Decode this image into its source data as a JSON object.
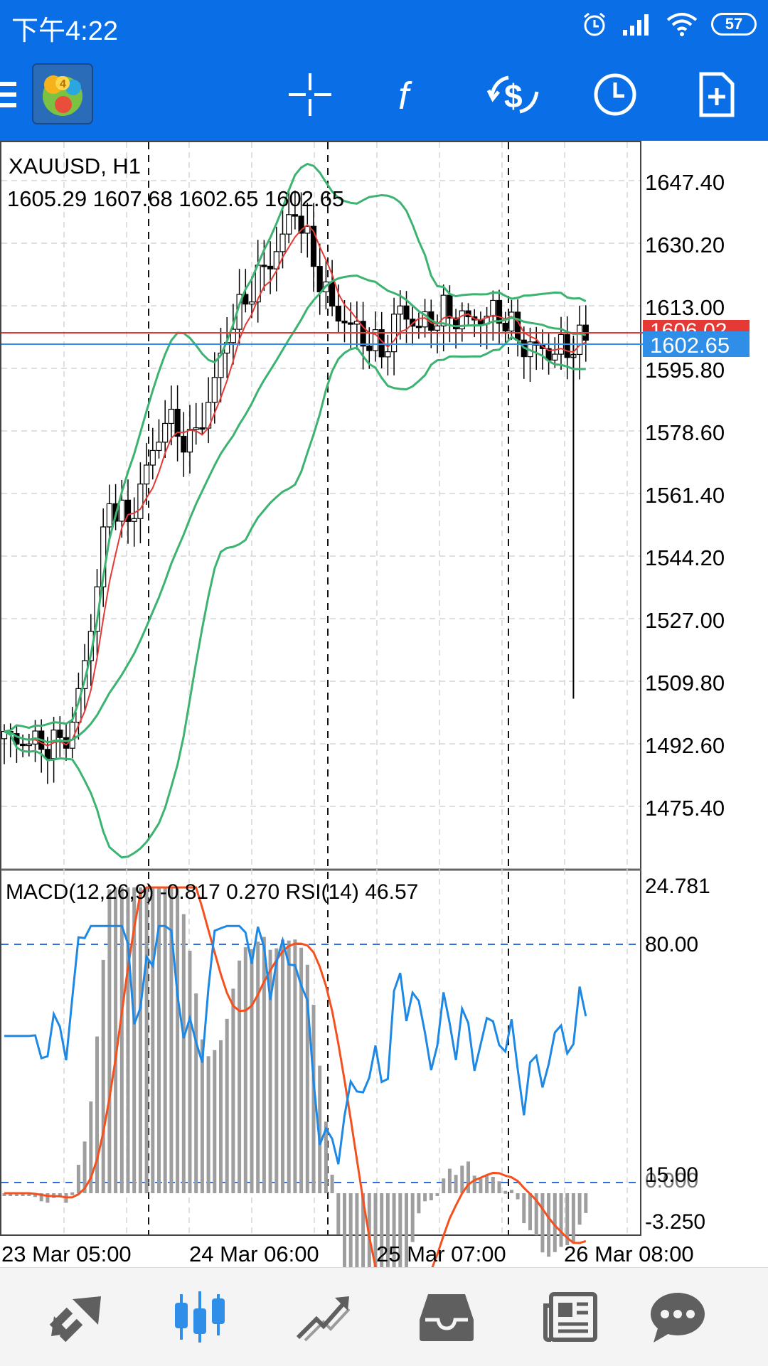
{
  "status_bar": {
    "time": "下午4:22",
    "battery": "57",
    "icons": [
      "alarm-icon",
      "signal-icon",
      "wifi-icon",
      "battery-icon"
    ]
  },
  "toolbar": {
    "icons": [
      "menu-icon",
      "app-logo-icon",
      "crosshair-icon",
      "indicators-icon",
      "trade-icon",
      "timeframe-icon",
      "new-order-icon"
    ]
  },
  "chart": {
    "symbol": "XAUUSD, H1",
    "ohlc": "1605.29 1607.68 1602.65 1602.65",
    "bid_label": "1602.65",
    "ask_label": "1606.02",
    "price_axis": [
      "1647.40",
      "1630.20",
      "1613.00",
      "1595.80",
      "1578.60",
      "1561.40",
      "1544.20",
      "1527.00",
      "1509.80",
      "1492.60",
      "1475.40"
    ],
    "time_axis": [
      "23 Mar 05:00",
      "24 Mar 06:00",
      "25 Mar 07:00",
      "26 Mar 08:00"
    ],
    "colors": {
      "bollinger": "#3cb371",
      "ma": "#e53935",
      "bid_line": "#2f8ee8",
      "ask_line": "#e53935",
      "macd_signal": "#f4511e",
      "rsi": "#1e88e5",
      "macd_hist": "#9e9e9e"
    }
  },
  "indicator": {
    "label": "MACD(12,26,9) -0.817 0.270 RSI(14) 46.57",
    "axis": [
      "24.781",
      "80.00",
      "15.00",
      "0.000",
      "-3.250"
    ]
  },
  "bottom_nav": {
    "icons": [
      "quotes-icon",
      "chart-icon",
      "trade-icon",
      "history-icon",
      "news-icon",
      "chat-icon"
    ],
    "active": "chart-icon"
  }
}
